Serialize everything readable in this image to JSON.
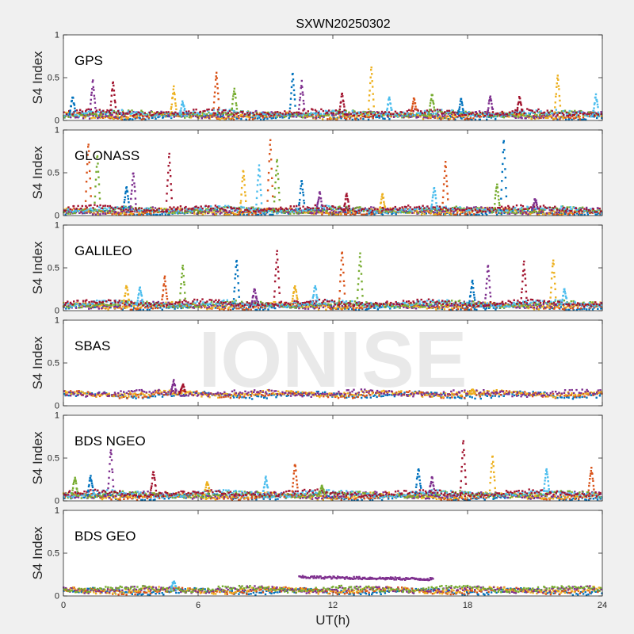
{
  "figure": {
    "title": "SXWN20250302",
    "xlabel": "UT(h)",
    "watermark": "IONISE",
    "background": "#f0f0f0",
    "axes_color": "#262626",
    "palette": [
      "#0072bd",
      "#d95319",
      "#edb120",
      "#7e2f8e",
      "#77ac30",
      "#4dbeee",
      "#a2142f"
    ]
  },
  "chart_data": [
    {
      "type": "scatter",
      "constellation": "GPS",
      "xlim": [
        0,
        24
      ],
      "ylim": [
        0,
        1
      ],
      "xticks": [
        0,
        6,
        12,
        18,
        24
      ],
      "yticks": [
        0,
        0.5,
        1
      ],
      "xlabel": "",
      "ylabel": "S4 Index",
      "grid": false,
      "series_count": 7,
      "baseline_level": 0.07,
      "spikes": [
        {
          "x": 0.4,
          "peak": 0.28
        },
        {
          "x": 1.3,
          "peak": 0.47
        },
        {
          "x": 2.2,
          "peak": 0.47
        },
        {
          "x": 4.9,
          "peak": 0.4
        },
        {
          "x": 5.3,
          "peak": 0.22
        },
        {
          "x": 6.8,
          "peak": 0.58
        },
        {
          "x": 7.6,
          "peak": 0.38
        },
        {
          "x": 10.2,
          "peak": 0.57
        },
        {
          "x": 10.6,
          "peak": 0.46
        },
        {
          "x": 12.4,
          "peak": 0.32
        },
        {
          "x": 13.7,
          "peak": 0.63
        },
        {
          "x": 14.5,
          "peak": 0.27
        },
        {
          "x": 15.6,
          "peak": 0.28
        },
        {
          "x": 16.4,
          "peak": 0.32
        },
        {
          "x": 17.7,
          "peak": 0.25
        },
        {
          "x": 19.0,
          "peak": 0.3
        },
        {
          "x": 20.3,
          "peak": 0.28
        },
        {
          "x": 22.0,
          "peak": 0.55
        },
        {
          "x": 23.7,
          "peak": 0.3
        }
      ]
    },
    {
      "type": "scatter",
      "constellation": "GLONASS",
      "xlim": [
        0,
        24
      ],
      "ylim": [
        0,
        1
      ],
      "xticks": [
        0,
        6,
        12,
        18,
        24
      ],
      "yticks": [
        0,
        0.5,
        1
      ],
      "xlabel": "",
      "ylabel": "S4 Index",
      "grid": false,
      "series_count": 7,
      "baseline_level": 0.06,
      "spikes": [
        {
          "x": 1.1,
          "peak": 0.88
        },
        {
          "x": 1.5,
          "peak": 0.72
        },
        {
          "x": 2.8,
          "peak": 0.35
        },
        {
          "x": 3.1,
          "peak": 0.52
        },
        {
          "x": 4.7,
          "peak": 0.75
        },
        {
          "x": 8.0,
          "peak": 0.55
        },
        {
          "x": 8.7,
          "peak": 0.6
        },
        {
          "x": 9.2,
          "peak": 0.92
        },
        {
          "x": 9.5,
          "peak": 0.68
        },
        {
          "x": 10.6,
          "peak": 0.42
        },
        {
          "x": 11.4,
          "peak": 0.27
        },
        {
          "x": 12.6,
          "peak": 0.25
        },
        {
          "x": 14.2,
          "peak": 0.25
        },
        {
          "x": 16.5,
          "peak": 0.35
        },
        {
          "x": 17.0,
          "peak": 0.65
        },
        {
          "x": 19.3,
          "peak": 0.38
        },
        {
          "x": 19.6,
          "peak": 0.92
        },
        {
          "x": 21.0,
          "peak": 0.2
        }
      ]
    },
    {
      "type": "scatter",
      "constellation": "GALILEO",
      "xlim": [
        0,
        24
      ],
      "ylim": [
        0,
        1
      ],
      "xticks": [
        0,
        6,
        12,
        18,
        24
      ],
      "yticks": [
        0,
        0.5,
        1
      ],
      "xlabel": "",
      "ylabel": "S4 Index",
      "grid": false,
      "series_count": 7,
      "baseline_level": 0.07,
      "spikes": [
        {
          "x": 2.8,
          "peak": 0.3
        },
        {
          "x": 3.4,
          "peak": 0.28
        },
        {
          "x": 4.5,
          "peak": 0.4
        },
        {
          "x": 5.3,
          "peak": 0.55
        },
        {
          "x": 7.7,
          "peak": 0.62
        },
        {
          "x": 8.5,
          "peak": 0.25
        },
        {
          "x": 9.5,
          "peak": 0.72
        },
        {
          "x": 10.3,
          "peak": 0.3
        },
        {
          "x": 11.2,
          "peak": 0.3
        },
        {
          "x": 12.4,
          "peak": 0.72
        },
        {
          "x": 13.2,
          "peak": 0.68
        },
        {
          "x": 18.2,
          "peak": 0.35
        },
        {
          "x": 18.9,
          "peak": 0.55
        },
        {
          "x": 20.5,
          "peak": 0.58
        },
        {
          "x": 21.8,
          "peak": 0.62
        },
        {
          "x": 22.3,
          "peak": 0.25
        }
      ]
    },
    {
      "type": "scatter",
      "constellation": "SBAS",
      "xlim": [
        0,
        24
      ],
      "ylim": [
        0,
        1
      ],
      "xticks": [
        0,
        6,
        12,
        18,
        24
      ],
      "yticks": [
        0,
        0.5,
        1
      ],
      "xlabel": "",
      "ylabel": "S4 Index",
      "grid": false,
      "series_count": 4,
      "baseline_level": 0.14,
      "spikes": [
        {
          "x": 4.9,
          "peak": 0.3
        },
        {
          "x": 5.3,
          "peak": 0.25
        },
        {
          "x": 18.2,
          "peak": 0.18
        }
      ]
    },
    {
      "type": "scatter",
      "constellation": "BDS NGEO",
      "xlim": [
        0,
        24
      ],
      "ylim": [
        0,
        1
      ],
      "xticks": [
        0,
        6,
        12,
        18,
        24
      ],
      "yticks": [
        0,
        0.5,
        1
      ],
      "xlabel": "",
      "ylabel": "S4 Index",
      "grid": false,
      "series_count": 7,
      "baseline_level": 0.07,
      "spikes": [
        {
          "x": 0.5,
          "peak": 0.28
        },
        {
          "x": 1.2,
          "peak": 0.3
        },
        {
          "x": 2.1,
          "peak": 0.62
        },
        {
          "x": 4.0,
          "peak": 0.35
        },
        {
          "x": 6.4,
          "peak": 0.22
        },
        {
          "x": 9.0,
          "peak": 0.28
        },
        {
          "x": 10.3,
          "peak": 0.45
        },
        {
          "x": 11.5,
          "peak": 0.18
        },
        {
          "x": 15.8,
          "peak": 0.4
        },
        {
          "x": 16.4,
          "peak": 0.28
        },
        {
          "x": 17.8,
          "peak": 0.72
        },
        {
          "x": 19.1,
          "peak": 0.55
        },
        {
          "x": 21.5,
          "peak": 0.4
        },
        {
          "x": 23.5,
          "peak": 0.4
        }
      ]
    },
    {
      "type": "scatter",
      "constellation": "BDS GEO",
      "xlim": [
        0,
        24
      ],
      "ylim": [
        0,
        1
      ],
      "xticks": [
        0,
        6,
        12,
        18,
        24
      ],
      "yticks": [
        0,
        0.5,
        1
      ],
      "xlabel": "UT(h)",
      "ylabel": "S4 Index",
      "grid": false,
      "series_count": 5,
      "baseline_level": 0.07,
      "spikes": [
        {
          "x": 4.9,
          "peak": 0.18
        }
      ],
      "elevated_segment": {
        "x_start": 10.5,
        "x_end": 16.5,
        "level": 0.22
      }
    }
  ]
}
